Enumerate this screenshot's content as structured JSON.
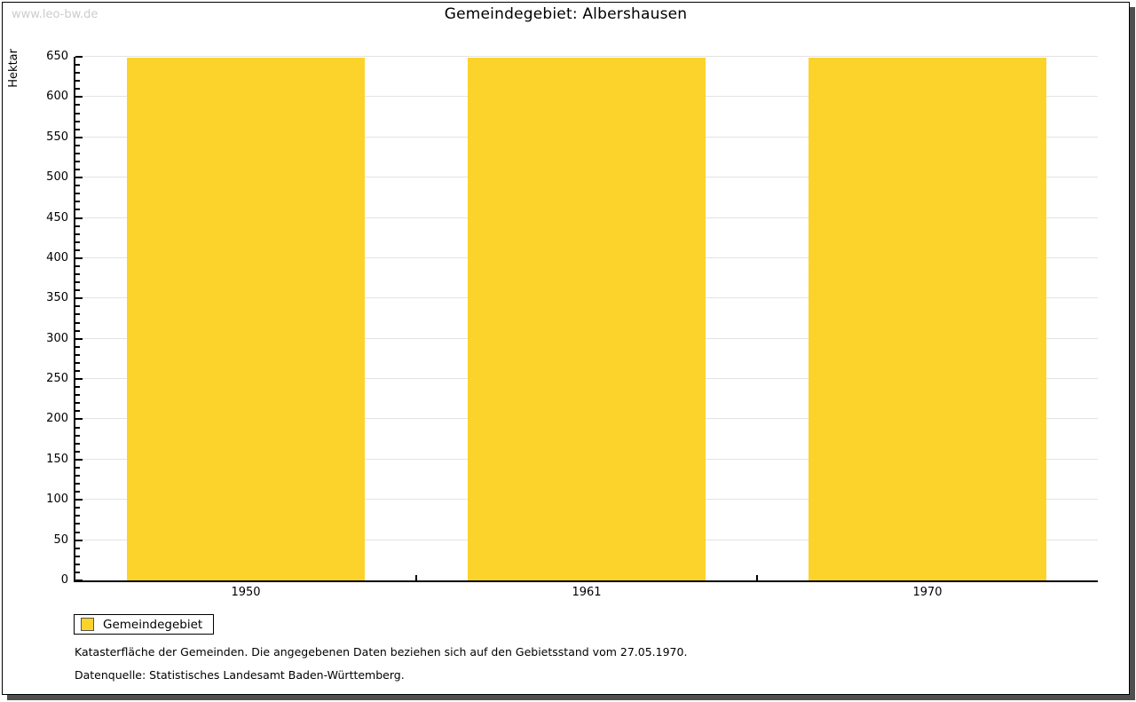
{
  "header": {
    "watermark": "www.leo-bw.de",
    "title": "Gemeindegebiet: Albershausen"
  },
  "chart_data": {
    "type": "bar",
    "title": "Gemeindegebiet: Albershausen",
    "categories": [
      "1950",
      "1961",
      "1970"
    ],
    "series": [
      {
        "name": "Gemeindegebiet",
        "values": [
          649,
          649,
          649
        ]
      }
    ],
    "xlabel": "",
    "ylabel": "Hektar",
    "ylim": [
      0,
      650
    ],
    "y_major_step": 50,
    "y_minor_step": 10,
    "y_tick_labels": [
      "0",
      "50",
      "100",
      "150",
      "200",
      "250",
      "300",
      "350",
      "400",
      "450",
      "500",
      "550",
      "600",
      "650"
    ],
    "grid": true,
    "bar_color": "#FCD32B",
    "legend_position": "bottom-left",
    "legend_entries": [
      "Gemeindegebiet"
    ]
  },
  "legend": {
    "label": "Gemeindegebiet",
    "swatch_color": "#FCD32B"
  },
  "footnotes": {
    "line1": "Katasterfläche der Gemeinden. Die angegebenen Daten beziehen sich auf den Gebietsstand vom 27.05.1970.",
    "line2": "Datenquelle: Statistisches Landesamt Baden-Württemberg."
  },
  "colors": {
    "bar": "#FCD32B",
    "gridline": "#E3E3E3",
    "axis": "#000000",
    "watermark_text": "#CCCCCC",
    "frame_shadow": "#4F4F4F"
  }
}
